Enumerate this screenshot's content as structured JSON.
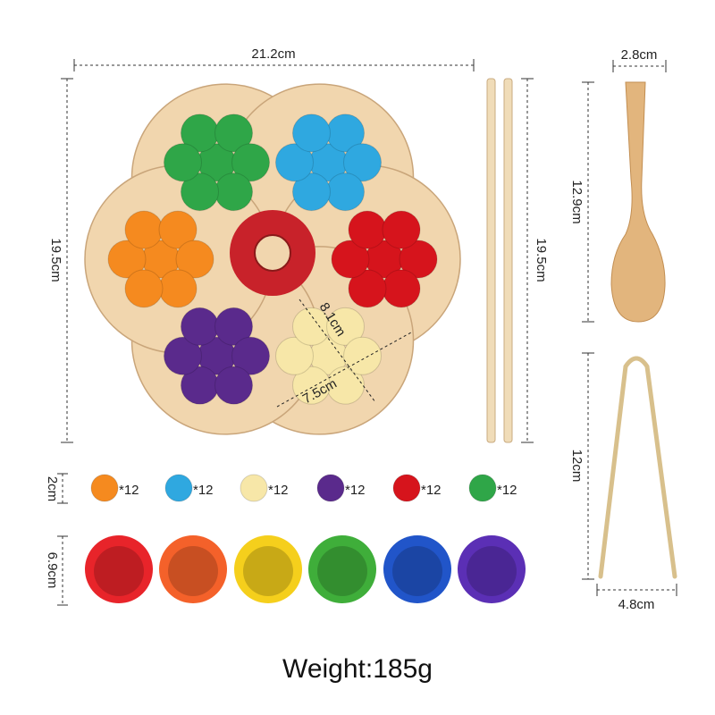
{
  "dimensions": {
    "board_width": "21.2cm",
    "board_height": "19.5cm",
    "chopstick_length": "19.5cm",
    "spoon_width": "2.8cm",
    "spoon_length": "12.9cm",
    "tongs_length": "12cm",
    "tongs_width": "4.8cm",
    "sector_length": "8.1cm",
    "sector_width": "7.5cm",
    "pompom_size": "2cm",
    "cup_size": "6.9cm"
  },
  "pompoms": [
    {
      "color": "#f58a1f",
      "count": "*12"
    },
    {
      "color": "#2fa8e0",
      "count": "*12"
    },
    {
      "color": "#f7e7a8",
      "count": "*12"
    },
    {
      "color": "#5a2a8c",
      "count": "*12"
    },
    {
      "color": "#d6141c",
      "count": "*12"
    },
    {
      "color": "#2fa648",
      "count": "*12"
    }
  ],
  "cups": [
    "#e8242a",
    "#f4612a",
    "#f5cf1c",
    "#3fae3a",
    "#2155c9",
    "#5b2fb5"
  ],
  "board_sectors": [
    "#3a9b4c",
    "#3ab3e3",
    "#d42a2e",
    "#f4e5a5",
    "#5b3296",
    "#f4702a"
  ],
  "weight": "Weight:185g"
}
